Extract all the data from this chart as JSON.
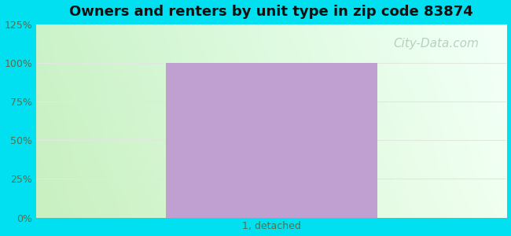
{
  "title": "Owners and renters by unit type in zip code 83874",
  "title_fontsize": 13,
  "categories": [
    "1, detached"
  ],
  "values": [
    100
  ],
  "bar_color": "#c0a0d0",
  "bar_width": 0.45,
  "ylim": [
    0,
    125
  ],
  "yticks": [
    0,
    25,
    50,
    75,
    100,
    125
  ],
  "yticklabels": [
    "0%",
    "25%",
    "50%",
    "75%",
    "100%",
    "125%"
  ],
  "tick_fontsize": 9,
  "cat_fontsize": 9,
  "background_outer": "#00e0f0",
  "grid_color": "#e0e8e0",
  "tick_color": "#507050",
  "cat_color": "#507050",
  "watermark_text": "City-Data.com",
  "watermark_color": "#b0c8b8",
  "watermark_fontsize": 11,
  "title_color": "#101010"
}
